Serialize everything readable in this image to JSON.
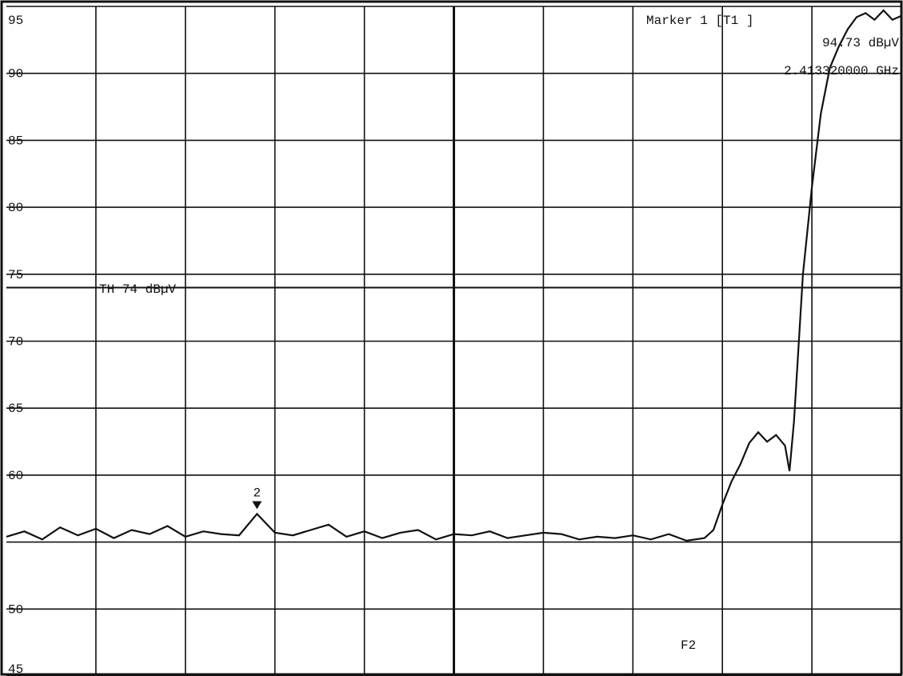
{
  "chart_data": {
    "type": "line",
    "title": "",
    "xlabel": "",
    "ylabel": "",
    "y_ticks": [
      "95",
      "90",
      "85",
      "80",
      "75",
      "70",
      "65",
      "60",
      "50",
      "45"
    ],
    "ylim": [
      45,
      95
    ],
    "grid": true,
    "line_color": "#111111",
    "threshold": {
      "label": "TH 74 dBµV",
      "value": 74
    },
    "marker1": {
      "title": "Marker 1 [T1 ]",
      "level": "94.73 dBµV",
      "freq": "2.413320000 GHz"
    },
    "marker2": {
      "label": "2",
      "x": 0.28,
      "y": 57.1
    },
    "f2_label": "F2",
    "trace": {
      "x": [
        0,
        0.02,
        0.04,
        0.06,
        0.08,
        0.1,
        0.12,
        0.14,
        0.16,
        0.18,
        0.2,
        0.22,
        0.24,
        0.26,
        0.28,
        0.3,
        0.32,
        0.34,
        0.36,
        0.38,
        0.4,
        0.42,
        0.44,
        0.46,
        0.48,
        0.5,
        0.52,
        0.54,
        0.56,
        0.58,
        0.6,
        0.62,
        0.64,
        0.66,
        0.68,
        0.7,
        0.72,
        0.74,
        0.76,
        0.78,
        0.79,
        0.8,
        0.81,
        0.82,
        0.83,
        0.84,
        0.85,
        0.86,
        0.87,
        0.875,
        0.88,
        0.89,
        0.9,
        0.91,
        0.92,
        0.93,
        0.94,
        0.95,
        0.96,
        0.97,
        0.98,
        0.99,
        1.0
      ],
      "y": [
        55.4,
        55.8,
        55.2,
        56.1,
        55.5,
        56.0,
        55.3,
        55.9,
        55.6,
        56.2,
        55.4,
        55.8,
        55.6,
        55.5,
        57.1,
        55.7,
        55.5,
        55.9,
        56.3,
        55.4,
        55.8,
        55.3,
        55.7,
        55.9,
        55.2,
        55.6,
        55.5,
        55.8,
        55.3,
        55.5,
        55.7,
        55.6,
        55.2,
        55.4,
        55.3,
        55.5,
        55.2,
        55.6,
        55.1,
        55.3,
        55.9,
        57.8,
        59.5,
        60.8,
        62.4,
        63.2,
        62.5,
        63.0,
        62.2,
        60.3,
        64.0,
        75.0,
        81.5,
        87.0,
        90.4,
        92.0,
        93.3,
        94.2,
        94.5,
        94.0,
        94.7,
        94.0,
        94.3
      ]
    }
  }
}
